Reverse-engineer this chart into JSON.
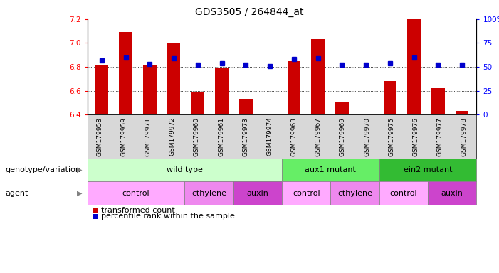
{
  "title": "GDS3505 / 264844_at",
  "samples": [
    "GSM179958",
    "GSM179959",
    "GSM179971",
    "GSM179972",
    "GSM179960",
    "GSM179961",
    "GSM179973",
    "GSM179974",
    "GSM179963",
    "GSM179967",
    "GSM179969",
    "GSM179970",
    "GSM179975",
    "GSM179976",
    "GSM179977",
    "GSM179978"
  ],
  "bar_values": [
    6.82,
    7.09,
    6.82,
    7.0,
    6.59,
    6.79,
    6.53,
    6.41,
    6.85,
    7.03,
    6.51,
    6.41,
    6.68,
    7.2,
    6.62,
    6.43
  ],
  "percentile_values": [
    57,
    60,
    53,
    59,
    52,
    54,
    52,
    51,
    58,
    59,
    52,
    52,
    54,
    60,
    52,
    52
  ],
  "ylim_left": [
    6.4,
    7.2
  ],
  "ylim_right": [
    0,
    100
  ],
  "yticks_left": [
    6.4,
    6.6,
    6.8,
    7.0,
    7.2
  ],
  "yticks_right": [
    0,
    25,
    50,
    75,
    100
  ],
  "bar_color": "#cc0000",
  "dot_color": "#0000cc",
  "bar_bottom": 6.4,
  "genotype_groups": [
    {
      "label": "wild type",
      "start": 0,
      "end": 8,
      "color": "#ccffcc"
    },
    {
      "label": "aux1 mutant",
      "start": 8,
      "end": 12,
      "color": "#66ee66"
    },
    {
      "label": "ein2 mutant",
      "start": 12,
      "end": 16,
      "color": "#33bb33"
    }
  ],
  "agent_groups": [
    {
      "label": "control",
      "start": 0,
      "end": 4,
      "color": "#ffaaff"
    },
    {
      "label": "ethylene",
      "start": 4,
      "end": 6,
      "color": "#ee88ee"
    },
    {
      "label": "auxin",
      "start": 6,
      "end": 8,
      "color": "#cc44cc"
    },
    {
      "label": "control",
      "start": 8,
      "end": 10,
      "color": "#ffaaff"
    },
    {
      "label": "ethylene",
      "start": 10,
      "end": 12,
      "color": "#ee88ee"
    },
    {
      "label": "control",
      "start": 12,
      "end": 14,
      "color": "#ffaaff"
    },
    {
      "label": "auxin",
      "start": 14,
      "end": 16,
      "color": "#cc44cc"
    }
  ],
  "grid_color": "#000000",
  "sample_bg_color": "#d8d8d8",
  "tick_fontsize": 7.5,
  "sample_fontsize": 6.5,
  "label_fontsize": 8,
  "bar_width": 0.55
}
